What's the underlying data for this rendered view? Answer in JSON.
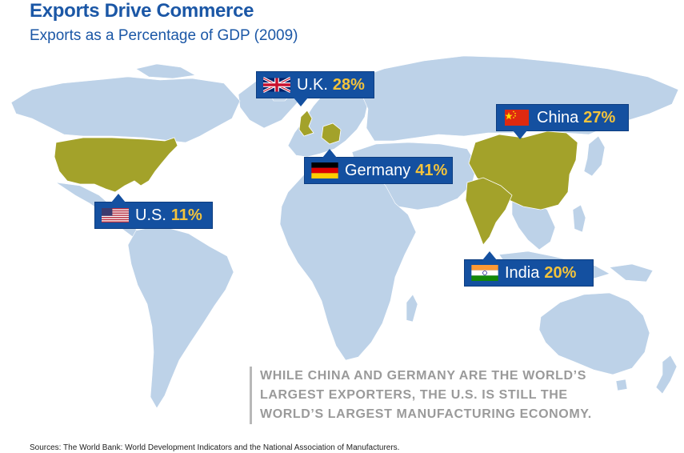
{
  "header": {
    "title": "Exports Drive Commerce",
    "subtitle": "Exports as a Percentage of GDP (2009)"
  },
  "colors": {
    "land": "#bdd2e8",
    "highlight": "#a3a22a",
    "callout_bg": "#1450a0",
    "percent_text": "#f3c33c",
    "title_text": "#1b57a6"
  },
  "callouts": [
    {
      "id": "uk",
      "country": "U.K.",
      "percent": "28%",
      "value": 28,
      "flag": "union-jack-flag-icon"
    },
    {
      "id": "china",
      "country": "China",
      "percent": "27%",
      "value": 27,
      "flag": "china-flag-icon"
    },
    {
      "id": "germany",
      "country": "Germany",
      "percent": "41%",
      "value": 41,
      "flag": "germany-flag-icon"
    },
    {
      "id": "us",
      "country": "U.S.",
      "percent": "11%",
      "value": 11,
      "flag": "us-flag-icon"
    },
    {
      "id": "india",
      "country": "India",
      "percent": "20%",
      "value": 20,
      "flag": "india-flag-icon"
    }
  ],
  "quote": {
    "line1": "While China and Germany are the world’s",
    "line2": "largest exporters, the U.S. is still the",
    "line3": "world’s largest manufacturing economy."
  },
  "footer": {
    "sources": "Sources: The World Bank: World Development Indicators and the National Association of Manufacturers."
  }
}
